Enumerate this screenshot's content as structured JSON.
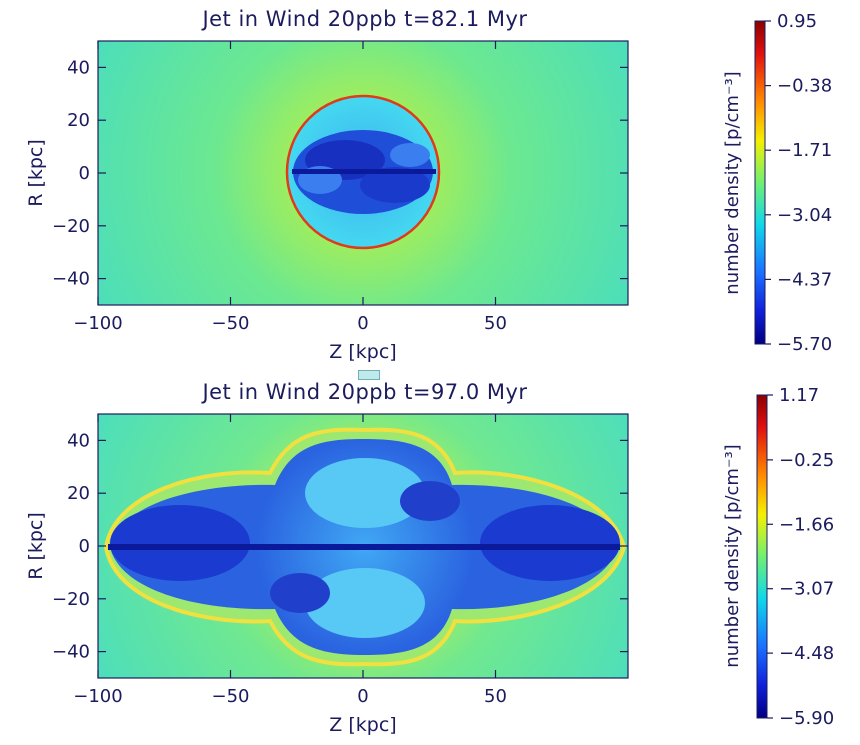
{
  "chart_data": [
    {
      "type": "heatmap",
      "title": "Jet in Wind  20ppb t=82.1 Myr",
      "xlabel": "Z [kpc]",
      "ylabel": "R [kpc]",
      "xlim": [
        -100,
        100
      ],
      "ylim": [
        -50,
        50
      ],
      "xticks": [
        "−100",
        "−50",
        "0",
        "50"
      ],
      "yticks": [
        "40",
        "20",
        "0",
        "−20",
        "−40"
      ],
      "colorbar": {
        "label": "number density [p/cm⁻³]",
        "ticks": [
          "0.95",
          "−0.38",
          "−1.71",
          "−3.04",
          "−4.37",
          "−5.70"
        ],
        "min": -5.7,
        "max": 0.95
      },
      "colors": {
        "background": "#4be0a8",
        "shell": "#e0402a",
        "cocoon": "#2a4fd8",
        "jet": "#0a1a9a"
      }
    },
    {
      "type": "heatmap",
      "title": "Jet in Wind  20ppb t=97.0 Myr",
      "xlabel": "Z [kpc]",
      "ylabel": "R [kpc]",
      "xlim": [
        -100,
        100
      ],
      "ylim": [
        -50,
        50
      ],
      "xticks": [
        "−100",
        "−50",
        "0",
        "50"
      ],
      "yticks": [
        "40",
        "20",
        "0",
        "−20",
        "−40"
      ],
      "colorbar": {
        "label": "number density [p/cm⁻³]",
        "ticks": [
          "1.17",
          "−0.25",
          "−1.66",
          "−3.07",
          "−4.48",
          "−5.90"
        ],
        "min": -5.9,
        "max": 1.17
      },
      "colors": {
        "background": "#4be0a8",
        "shell": "#f0d040",
        "cocoon": "#2a4fd8",
        "jet": "#0a1a9a"
      }
    }
  ]
}
